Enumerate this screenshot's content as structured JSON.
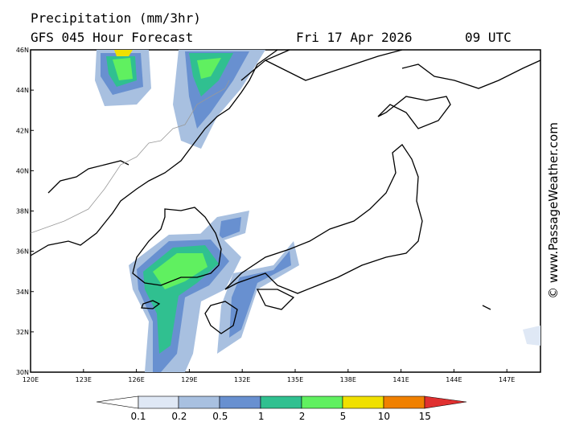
{
  "header": {
    "title": "Precipitation (mm/3hr)",
    "forecast": "GFS 045 Hour Forecast",
    "date": "Fri 17 Apr 2026",
    "time": "09 UTC"
  },
  "map": {
    "lat_labels": [
      "46N",
      "44N",
      "42N",
      "40N",
      "38N",
      "36N",
      "34N",
      "32N",
      "30N"
    ],
    "lon_labels": [
      "120E",
      "123E",
      "126E",
      "129E",
      "132E",
      "135E",
      "138E",
      "141E",
      "144E",
      "147E"
    ]
  },
  "legend": {
    "labels": [
      "0.1",
      "0.2",
      "0.5",
      "1",
      "2",
      "5",
      "10",
      "15"
    ]
  },
  "credit": "© www.PassageWeather.com"
}
